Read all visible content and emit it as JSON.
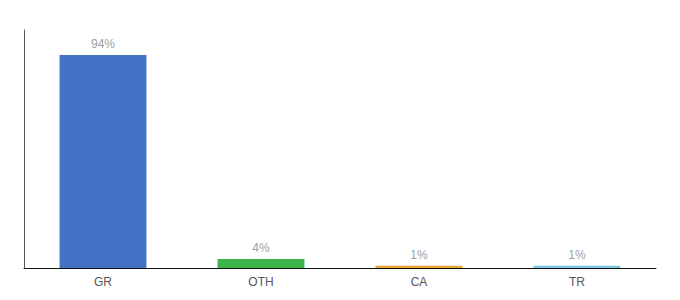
{
  "chart_data": {
    "type": "bar",
    "categories": [
      "GR",
      "OTH",
      "CA",
      "TR"
    ],
    "values": [
      94,
      4,
      1,
      1
    ],
    "value_labels": [
      "94%",
      "4%",
      "1%",
      "1%"
    ],
    "data_labels": true,
    "colors": [
      "#4472C4",
      "#3CB54A",
      "#E8A838",
      "#7EC8E3"
    ],
    "ylim": [
      0,
      105
    ],
    "tick_labels": "x",
    "grid": false
  }
}
